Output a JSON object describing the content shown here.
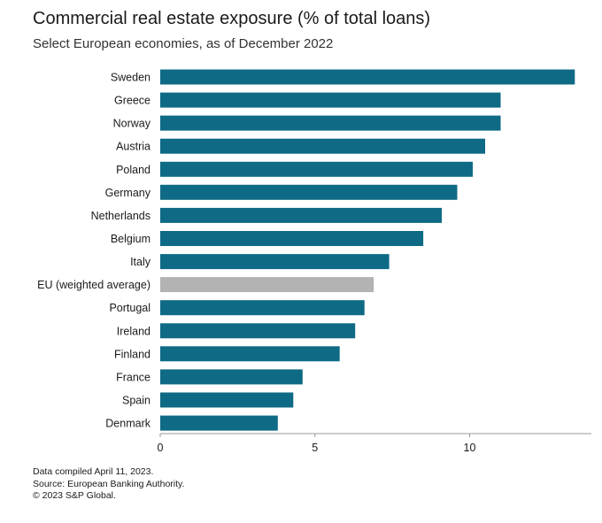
{
  "header": {
    "title": "Commercial real estate exposure (% of total loans)",
    "subtitle": "Select European economies, as of December 2022"
  },
  "footer": {
    "line1": "Data compiled April 11, 2023.",
    "line2": "Source: European Banking Authority.",
    "line3": "© 2023 S&P Global."
  },
  "colors": {
    "bar": "#0e6a85",
    "highlight": "#b3b3b3",
    "axis": "#999999",
    "text": "#1a1a1a"
  },
  "chart_data": {
    "type": "bar",
    "orientation": "horizontal",
    "title": "Commercial real estate exposure (% of total loans)",
    "subtitle": "Select European economies, as of December 2022",
    "categories": [
      "Sweden",
      "Greece",
      "Norway",
      "Austria",
      "Poland",
      "Germany",
      "Netherlands",
      "Belgium",
      "Italy",
      "EU (weighted average)",
      "Portugal",
      "Ireland",
      "Finland",
      "France",
      "Spain",
      "Denmark"
    ],
    "values": [
      13.4,
      11.0,
      11.0,
      10.5,
      10.1,
      9.6,
      9.1,
      8.5,
      7.4,
      6.9,
      6.6,
      6.3,
      5.8,
      4.6,
      4.3,
      3.8
    ],
    "highlight_category": "EU (weighted average)",
    "xlim": [
      0,
      14
    ],
    "xticks": [
      0,
      5,
      10
    ],
    "xlabel": "",
    "ylabel": "",
    "grid": false,
    "legend": "none"
  }
}
